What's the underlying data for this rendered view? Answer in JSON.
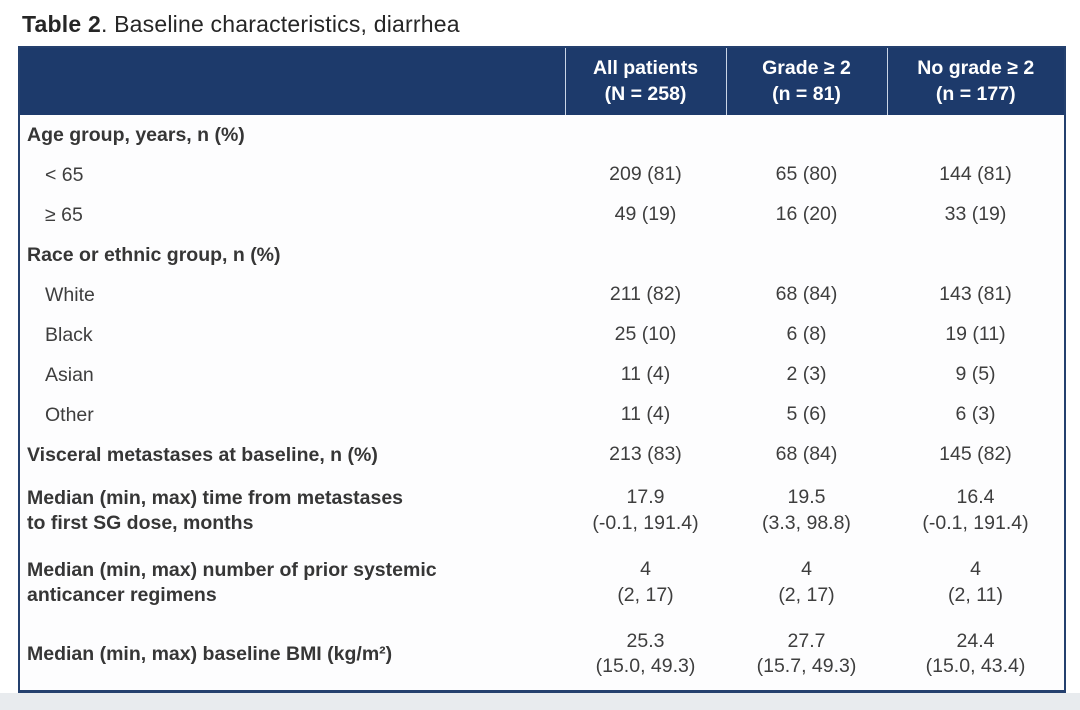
{
  "caption": {
    "bold": "Table 2",
    "rest": ". Baseline characteristics, diarrhea"
  },
  "table": {
    "header": {
      "row_label": "",
      "columns": [
        "All patients\n(N = 258)",
        "Grade ≥ 2\n(n = 81)",
        "No grade ≥ 2\n(n = 177)"
      ]
    },
    "rows": [
      {
        "type": "section",
        "label": "Age group, years, n (%)",
        "values": [
          "",
          "",
          ""
        ]
      },
      {
        "type": "item",
        "label": "< 65",
        "values": [
          "209 (81)",
          "65 (80)",
          "144 (81)"
        ]
      },
      {
        "type": "item",
        "label": "≥ 65",
        "values": [
          "49 (19)",
          "16 (20)",
          "33 (19)"
        ]
      },
      {
        "type": "section",
        "label": "Race or ethnic group, n (%)",
        "values": [
          "",
          "",
          ""
        ]
      },
      {
        "type": "item",
        "label": "White",
        "values": [
          "211 (82)",
          "68 (84)",
          "143 (81)"
        ]
      },
      {
        "type": "item",
        "label": "Black",
        "values": [
          "25 (10)",
          "6 (8)",
          "19 (11)"
        ]
      },
      {
        "type": "item",
        "label": "Asian",
        "values": [
          "11 (4)",
          "2 (3)",
          "9 (5)"
        ]
      },
      {
        "type": "item",
        "label": "Other",
        "values": [
          "11 (4)",
          "5 (6)",
          "6 (3)"
        ]
      },
      {
        "type": "bold",
        "label": "Visceral metastases at baseline, n (%)",
        "values": [
          "213 (83)",
          "68 (84)",
          "145 (82)"
        ]
      },
      {
        "type": "bold",
        "label": "Median (min, max) time from metastases\nto first SG dose, months",
        "values": [
          "17.9\n(-0.1, 191.4)",
          "19.5\n(3.3, 98.8)",
          "16.4\n(-0.1, 191.4)"
        ]
      },
      {
        "type": "bold",
        "label": "Median (min, max) number of prior systemic\nanticancer regimens",
        "values": [
          "4\n(2, 17)",
          "4\n(2, 17)",
          "4\n(2, 11)"
        ]
      },
      {
        "type": "bold",
        "label": "Median (min, max) baseline BMI (kg/m²)",
        "values": [
          "25.3\n(15.0, 49.3)",
          "27.7\n(15.7, 49.3)",
          "24.4\n(15.0, 43.4)"
        ]
      }
    ]
  },
  "colors": {
    "header_bg": "#1d3a6b",
    "header_text": "#ffffff",
    "table_border": "#24406e",
    "header_separator": "#c9d4e6",
    "body_text": "#3e3e3e",
    "below_strip": "#e8ebee"
  }
}
